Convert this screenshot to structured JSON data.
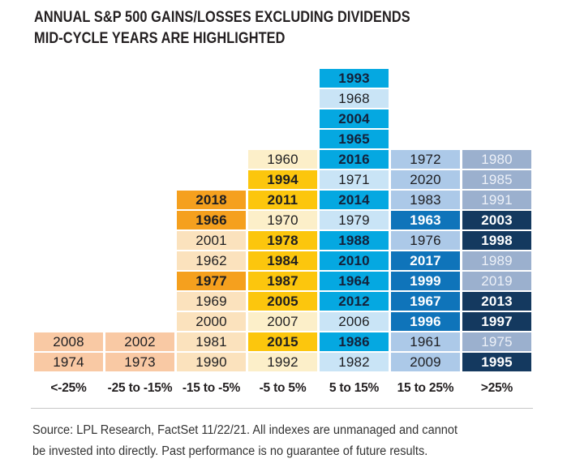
{
  "header": {
    "title_line1": "ANNUAL S&P 500 GAINS/LOSSES EXCLUDING DIVIDENDS",
    "title_line2_prefix": "MID-CYCLE YEARS ARE ",
    "title_line2_bold": "HIGHLIGHTED"
  },
  "chart_data": {
    "type": "table",
    "title": "Annual S&P 500 Gains/Losses Excluding Dividends",
    "subtitle": "Mid-cycle years are highlighted",
    "layout": {
      "rows_total": 15,
      "legend_position": "none",
      "grid": "off",
      "note": "Each column is a return bin; cells stack bottom-up; highlighted = bold mid-cycle year"
    },
    "bins": [
      {
        "label": "<-25%",
        "count": 2,
        "palette": {
          "bg": "#F9C9A4",
          "text": "#1E1E21",
          "hl_bg": "#F9C9A4",
          "hl_text": "#1E1E21"
        },
        "cells": [
          {
            "year": "2008",
            "highlighted": false
          },
          {
            "year": "1974",
            "highlighted": false
          }
        ]
      },
      {
        "label": "-25 to -15%",
        "count": 2,
        "palette": {
          "bg": "#F9C9A4",
          "text": "#1E1E21",
          "hl_bg": "#F9C9A4",
          "hl_text": "#1E1E21"
        },
        "cells": [
          {
            "year": "2002",
            "highlighted": false
          },
          {
            "year": "1973",
            "highlighted": false
          }
        ]
      },
      {
        "label": "-15 to -5%",
        "count": 9,
        "palette": {
          "bg": "#FBE2BD",
          "text": "#1E1E21",
          "hl_bg": "#F5A01E",
          "hl_text": "#1E1E21"
        },
        "cells": [
          {
            "year": "2018",
            "highlighted": true
          },
          {
            "year": "1966",
            "highlighted": true
          },
          {
            "year": "2001",
            "highlighted": false
          },
          {
            "year": "1962",
            "highlighted": false
          },
          {
            "year": "1977",
            "highlighted": true
          },
          {
            "year": "1969",
            "highlighted": false
          },
          {
            "year": "2000",
            "highlighted": false
          },
          {
            "year": "1981",
            "highlighted": false
          },
          {
            "year": "1990",
            "highlighted": false
          }
        ]
      },
      {
        "label": "-5 to 5%",
        "count": 11,
        "palette": {
          "bg": "#FCEFC9",
          "text": "#1E1E21",
          "hl_bg": "#FCC60D",
          "hl_text": "#1E1E21"
        },
        "cells": [
          {
            "year": "1960",
            "highlighted": false
          },
          {
            "year": "1994",
            "highlighted": true
          },
          {
            "year": "2011",
            "highlighted": true
          },
          {
            "year": "1970",
            "highlighted": false
          },
          {
            "year": "1978",
            "highlighted": true
          },
          {
            "year": "1984",
            "highlighted": true
          },
          {
            "year": "1987",
            "highlighted": true
          },
          {
            "year": "2005",
            "highlighted": true
          },
          {
            "year": "2007",
            "highlighted": false
          },
          {
            "year": "2015",
            "highlighted": true
          },
          {
            "year": "1992",
            "highlighted": false
          }
        ]
      },
      {
        "label": "5 to 15%",
        "count": 15,
        "palette": {
          "bg": "#C9E4F6",
          "text": "#1E1E21",
          "hl_bg": "#05A8E1",
          "hl_text": "#14213A"
        },
        "cells": [
          {
            "year": "1993",
            "highlighted": true
          },
          {
            "year": "1968",
            "highlighted": false
          },
          {
            "year": "2004",
            "highlighted": true
          },
          {
            "year": "1965",
            "highlighted": true
          },
          {
            "year": "2016",
            "highlighted": true
          },
          {
            "year": "1971",
            "highlighted": false
          },
          {
            "year": "2014",
            "highlighted": true
          },
          {
            "year": "1979",
            "highlighted": false
          },
          {
            "year": "1988",
            "highlighted": true
          },
          {
            "year": "2010",
            "highlighted": true
          },
          {
            "year": "1964",
            "highlighted": true
          },
          {
            "year": "2012",
            "highlighted": true
          },
          {
            "year": "2006",
            "highlighted": false
          },
          {
            "year": "1986",
            "highlighted": true
          },
          {
            "year": "1982",
            "highlighted": false
          }
        ]
      },
      {
        "label": "15 to 25%",
        "count": 11,
        "palette": {
          "bg": "#ACC9E8",
          "text": "#1E1E21",
          "hl_bg": "#0F74BA",
          "hl_text": "#FFFFFF"
        },
        "cells": [
          {
            "year": "1972",
            "highlighted": false
          },
          {
            "year": "2020",
            "highlighted": false
          },
          {
            "year": "1983",
            "highlighted": false
          },
          {
            "year": "1963",
            "highlighted": true
          },
          {
            "year": "1976",
            "highlighted": false
          },
          {
            "year": "2017",
            "highlighted": true
          },
          {
            "year": "1999",
            "highlighted": true
          },
          {
            "year": "1967",
            "highlighted": true
          },
          {
            "year": "1996",
            "highlighted": true
          },
          {
            "year": "1961",
            "highlighted": false
          },
          {
            "year": "2009",
            "highlighted": false
          }
        ]
      },
      {
        "label": ">25%",
        "count": 11,
        "palette": {
          "bg": "#9BB0CE",
          "text": "#EDF1F8",
          "hl_bg": "#14395F",
          "hl_text": "#FFFFFF"
        },
        "cells": [
          {
            "year": "1980",
            "highlighted": false
          },
          {
            "year": "1985",
            "highlighted": false
          },
          {
            "year": "1991",
            "highlighted": false
          },
          {
            "year": "2003",
            "highlighted": true
          },
          {
            "year": "1998",
            "highlighted": true
          },
          {
            "year": "1989",
            "highlighted": false
          },
          {
            "year": "2019",
            "highlighted": false
          },
          {
            "year": "2013",
            "highlighted": true
          },
          {
            "year": "1997",
            "highlighted": true
          },
          {
            "year": "1975",
            "highlighted": false
          },
          {
            "year": "1995",
            "highlighted": true
          }
        ]
      }
    ]
  },
  "footer": {
    "source_line1": "Source: LPL Research, FactSet  11/22/21. All indexes are unmanaged and cannot",
    "source_line2": "be invested into directly.  Past performance is no guarantee of future results."
  }
}
